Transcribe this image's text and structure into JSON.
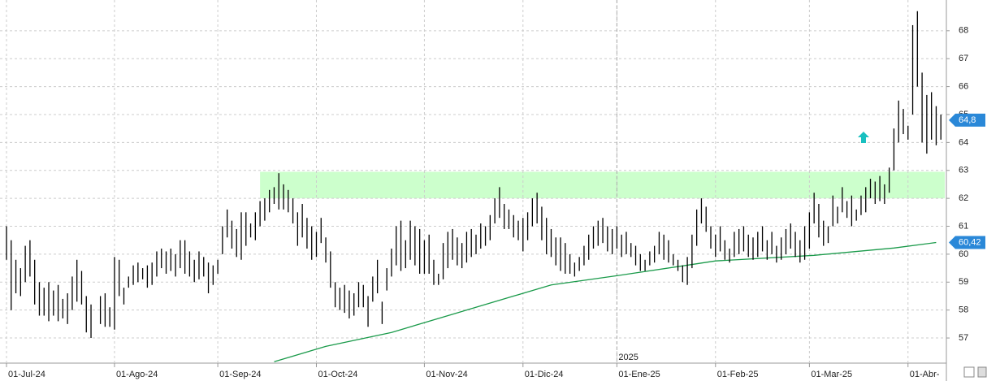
{
  "chart_data": {
    "type": "ohlc",
    "categories": [
      "01-Jul-24",
      null,
      null,
      null,
      null,
      null,
      null,
      null,
      null,
      null,
      null,
      null,
      null,
      null,
      null,
      null,
      null,
      null,
      null,
      null,
      null,
      null,
      null,
      "01-Ago-24",
      null,
      null,
      null,
      null,
      null,
      null,
      null,
      null,
      null,
      null,
      null,
      null,
      null,
      null,
      null,
      null,
      null,
      null,
      null,
      null,
      null,
      "01-Sep-24",
      null,
      null,
      null,
      null,
      null,
      null,
      null,
      null,
      null,
      null,
      null,
      null,
      null,
      null,
      null,
      null,
      null,
      null,
      null,
      null,
      "01-Oct-24",
      null,
      null,
      null,
      null,
      null,
      null,
      null,
      null,
      null,
      null,
      null,
      null,
      null,
      null,
      null,
      null,
      null,
      null,
      null,
      null,
      null,
      null,
      "01-Nov-24",
      null,
      null,
      null,
      null,
      null,
      null,
      null,
      null,
      null,
      null,
      null,
      null,
      null,
      null,
      null,
      null,
      null,
      null,
      null,
      null,
      "01-Dic-24",
      null,
      null,
      null,
      null,
      null,
      null,
      null,
      null,
      null,
      null,
      null,
      null,
      null,
      null,
      null,
      null,
      null,
      null,
      null,
      "01-Ene-25",
      null,
      null,
      null,
      null,
      null,
      null,
      null,
      null,
      null,
      null,
      null,
      null,
      null,
      null,
      null,
      null,
      null,
      null,
      null,
      null,
      "01-Feb-25",
      null,
      null,
      null,
      null,
      null,
      null,
      null,
      null,
      null,
      null,
      null,
      null,
      null,
      null,
      null,
      null,
      null,
      null,
      null,
      "01-Mar-25",
      null,
      null,
      null,
      null,
      null,
      null,
      null,
      null,
      null,
      null,
      null,
      null,
      null,
      null,
      null,
      null,
      null,
      null,
      null,
      null,
      "01-Abr-",
      null,
      null,
      null,
      null,
      null,
      null,
      null
    ],
    "high": [
      61,
      60.5,
      59.8,
      59.5,
      60.3,
      60.5,
      59.8,
      59,
      58.8,
      59,
      58.7,
      58.9,
      58.4,
      58.6,
      59.2,
      59.8,
      59.4,
      58.5,
      58.2,
      57.3,
      58.5,
      58.6,
      58.1,
      59.9,
      59.8,
      58.8,
      59.2,
      59.6,
      59.7,
      59.5,
      59.6,
      59.7,
      60.1,
      60.2,
      60.1,
      60.2,
      60,
      60.5,
      60.5,
      60.1,
      59.8,
      60.1,
      59.9,
      59.7,
      59.6,
      59.8,
      61,
      61.6,
      61.2,
      60.9,
      61.5,
      61.5,
      61.1,
      61.5,
      61.9,
      62,
      62.3,
      62.4,
      62.9,
      62.5,
      62.3,
      62,
      61.5,
      61.8,
      61.3,
      61,
      60.8,
      61.3,
      60.6,
      60.1,
      59,
      58.8,
      58.9,
      58.7,
      58.6,
      59,
      58.9,
      58.5,
      59.2,
      59.8,
      58.3,
      59.5,
      60.2,
      61,
      61.2,
      60.5,
      61.2,
      61,
      60.9,
      60.5,
      60.7,
      59.8,
      59.3,
      60.4,
      60.8,
      60.9,
      60.6,
      60.4,
      60.8,
      60.9,
      60.7,
      61.1,
      61,
      61.4,
      62,
      62.4,
      61.8,
      61.6,
      61.4,
      61.2,
      61.3,
      61.5,
      62,
      62.2,
      61.7,
      61.3,
      60.9,
      60.6,
      60.6,
      60.4,
      60,
      59.7,
      59.9,
      60.3,
      60.7,
      61,
      61.2,
      61.3,
      61,
      60.9,
      61,
      60.7,
      60.8,
      60.4,
      60.3,
      60,
      59.8,
      60.1,
      60.3,
      60.8,
      60.7,
      60.5,
      60,
      59.8,
      59.6,
      59.9,
      60.7,
      61.6,
      62,
      61.7,
      61,
      60.7,
      61,
      60.5,
      60.2,
      60.8,
      60.9,
      61,
      60.7,
      60.6,
      60.8,
      61,
      60.5,
      60.8,
      60.3,
      60.6,
      60.9,
      61.1,
      60.8,
      60.5,
      61,
      61.5,
      62.2,
      61.8,
      61.2,
      61,
      62.1,
      61.7,
      62.4,
      61.9,
      62.1,
      61.6,
      62.1,
      62.4,
      62.7,
      62.6,
      62.8,
      62.5,
      63.1,
      64.5,
      65.5,
      65.2,
      64.6,
      68.2,
      68.7,
      66.5,
      65.7,
      65.8,
      65.3,
      65
    ],
    "low": [
      59.8,
      58,
      58.6,
      58.5,
      59,
      59.2,
      58.2,
      57.8,
      57.8,
      57.6,
      57.8,
      57.6,
      57.7,
      57.5,
      58,
      58.3,
      58.2,
      57.2,
      57,
      57.3,
      57.5,
      57.4,
      57.4,
      57.3,
      58.5,
      58.2,
      58.8,
      58.9,
      59,
      59.1,
      58.8,
      58.9,
      59.2,
      59.5,
      59.3,
      59.4,
      59.2,
      59.5,
      59.3,
      59.2,
      59,
      59.1,
      59.2,
      58.6,
      58.9,
      59.3,
      60,
      60.6,
      60.2,
      59.9,
      59.8,
      60.3,
      60.6,
      60.5,
      61,
      61.2,
      61.5,
      61.8,
      61.6,
      61.6,
      61.5,
      61.1,
      60.3,
      60.6,
      60.2,
      59.8,
      59.9,
      60.4,
      59.7,
      58.8,
      58.1,
      58,
      57.9,
      57.7,
      57.8,
      58.1,
      58.1,
      57.4,
      58.3,
      58.6,
      57.5,
      58.7,
      59.2,
      59.6,
      59.4,
      59.5,
      59.8,
      59.6,
      59.3,
      59.3,
      59.3,
      58.9,
      58.9,
      59.1,
      59.5,
      59.8,
      59.6,
      59.5,
      59.7,
      59.9,
      60,
      60.2,
      60.3,
      60.5,
      61.1,
      61.3,
      60.9,
      60.9,
      60.6,
      60.5,
      60.1,
      60.5,
      61,
      61.1,
      60.5,
      60,
      59.9,
      59.6,
      59.4,
      59.3,
      59.3,
      59.2,
      59.4,
      59.6,
      59.8,
      60.2,
      60.3,
      60.4,
      60.1,
      60,
      60.2,
      59.9,
      60,
      59.9,
      59.6,
      59.4,
      59.4,
      59.6,
      59.7,
      60,
      59.8,
      59.7,
      59.6,
      59.4,
      59,
      58.9,
      59.5,
      60.3,
      61.1,
      60.8,
      60.2,
      59.9,
      60.1,
      59.8,
      59.7,
      59.9,
      60,
      60.1,
      59.9,
      59.8,
      59.9,
      60.1,
      59.8,
      60,
      59.7,
      59.8,
      60,
      60.2,
      59.9,
      59.7,
      59.8,
      60.2,
      61.1,
      60.6,
      60.3,
      60.4,
      61,
      61.1,
      61.5,
      61.3,
      61,
      61.2,
      61.4,
      61.5,
      62,
      61.8,
      61.9,
      61.8,
      62.2,
      63,
      64,
      64.3,
      64.1,
      65,
      66,
      64,
      63.6,
      64.1,
      63.9,
      64.1
    ],
    "color": "#000000",
    "last": {
      "value": 64.8,
      "value_label": "64,8"
    },
    "ma": {
      "color": "#1a9a4a",
      "x": [
        57,
        68,
        82,
        96,
        116,
        130,
        144,
        151,
        172,
        189,
        198
      ],
      "values": [
        56.15,
        56.7,
        57.2,
        57.9,
        58.9,
        59.23,
        59.58,
        59.76,
        59.96,
        60.22,
        60.42
      ],
      "value_label": "60,42"
    },
    "zone": {
      "color": "#ccffcc",
      "start": 54,
      "range": [
        62,
        62.95
      ]
    },
    "year_label": {
      "text": "2025",
      "at": 130
    },
    "ylim": [
      56.1,
      69.1
    ],
    "yticks": [
      57,
      58,
      59,
      60,
      61,
      62,
      63,
      64,
      65,
      66,
      67,
      68
    ],
    "grid": true
  }
}
